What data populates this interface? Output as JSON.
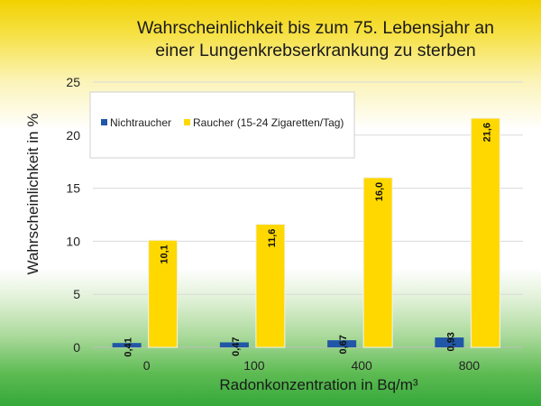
{
  "chart_data": {
    "type": "bar",
    "title": [
      "Wahrscheinlichkeit bis zum 75. Lebensjahr an",
      "einer Lungenkrebserkrankung zu sterben"
    ],
    "xlabel": "Radonkonzentration in Bq/m³",
    "ylabel": "Wahrscheinlichkeit in %",
    "categories": [
      "0",
      "100",
      "400",
      "800"
    ],
    "ylim": [
      0,
      25
    ],
    "yticks": [
      "0",
      "5",
      "10",
      "15",
      "20",
      "25"
    ],
    "grid": true,
    "legend_position": "top-left",
    "series": [
      {
        "name": "Nichtraucher",
        "values": [
          0.41,
          0.47,
          0.67,
          0.93
        ],
        "labels": [
          "0,41",
          "0,47",
          "0,67",
          "0,93"
        ],
        "color": "#2157a6"
      },
      {
        "name": "Raucher (15-24 Zigaretten/Tag)",
        "values": [
          10.1,
          11.6,
          16.0,
          21.6
        ],
        "labels": [
          "10,1",
          "11,6",
          "16,0",
          "21,6"
        ],
        "color": "#ffd800"
      }
    ]
  }
}
